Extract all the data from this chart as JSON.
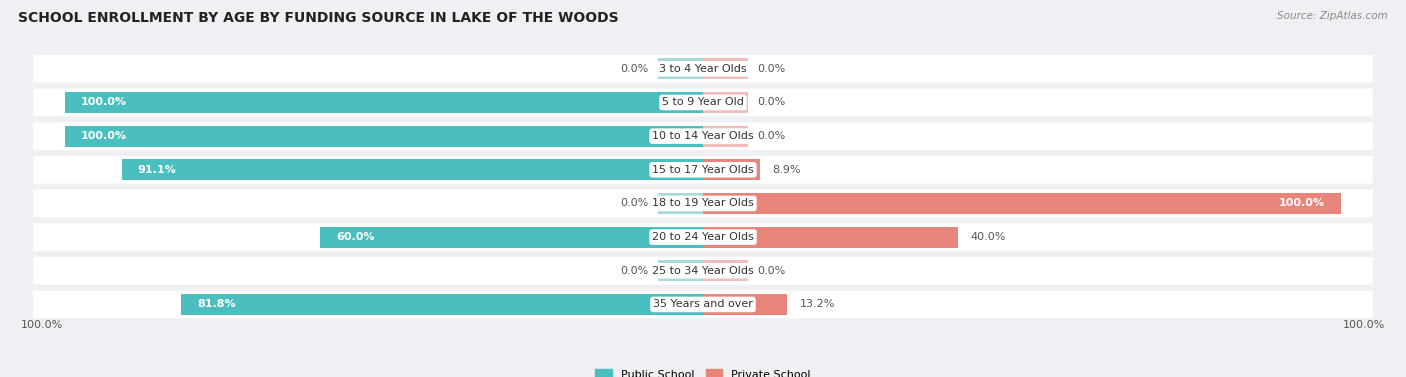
{
  "title": "SCHOOL ENROLLMENT BY AGE BY FUNDING SOURCE IN LAKE OF THE WOODS",
  "source": "Source: ZipAtlas.com",
  "categories": [
    "3 to 4 Year Olds",
    "5 to 9 Year Old",
    "10 to 14 Year Olds",
    "15 to 17 Year Olds",
    "18 to 19 Year Olds",
    "20 to 24 Year Olds",
    "25 to 34 Year Olds",
    "35 Years and over"
  ],
  "public_values": [
    0.0,
    100.0,
    100.0,
    91.1,
    0.0,
    60.0,
    0.0,
    81.8
  ],
  "private_values": [
    0.0,
    0.0,
    0.0,
    8.9,
    100.0,
    40.0,
    0.0,
    13.2
  ],
  "public_color": "#4BBFBF",
  "private_color": "#E8857A",
  "public_color_light": "#A8DADB",
  "private_color_light": "#F2BDB8",
  "bg_color": "#F0F0F4",
  "bar_bg_color": "#FFFFFF",
  "title_fontsize": 10,
  "label_fontsize": 8,
  "bar_height": 0.62,
  "stub_size": 7.0,
  "x_left_label": "100.0%",
  "x_right_label": "100.0%"
}
